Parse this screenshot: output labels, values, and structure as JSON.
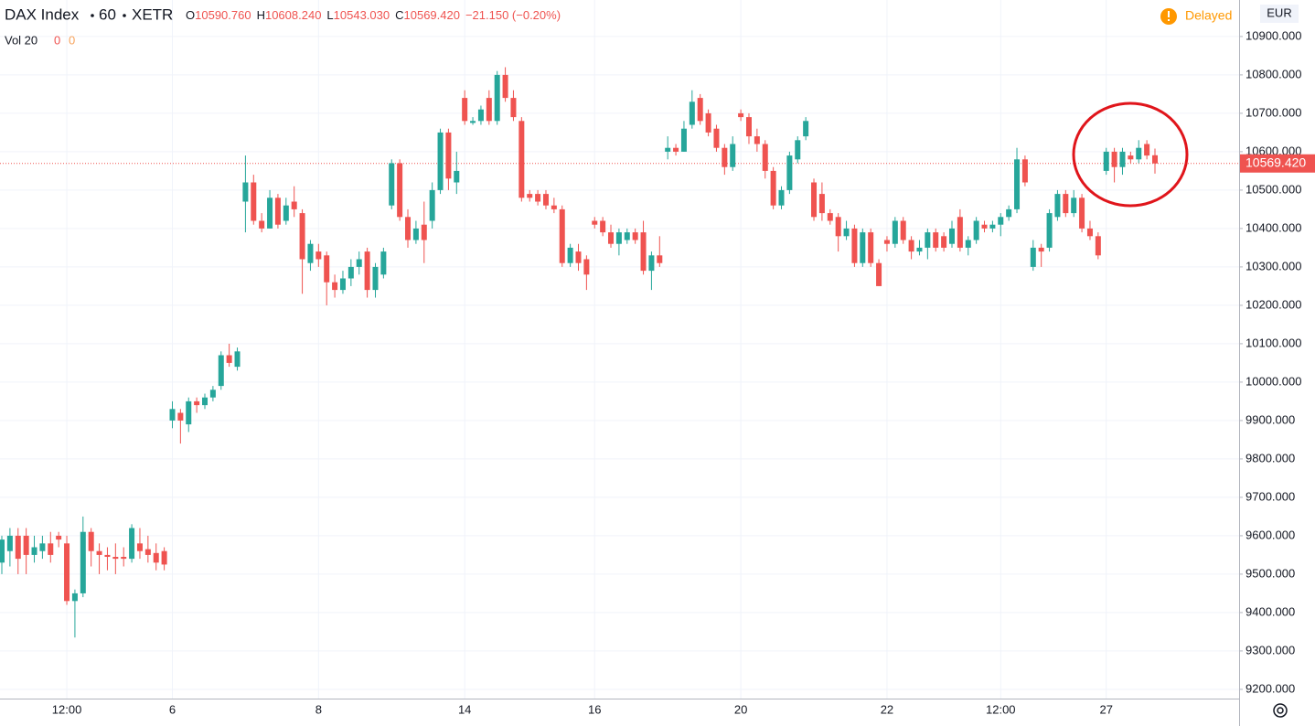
{
  "chart_data": {
    "type": "candlestick",
    "symbol": "DAX Index",
    "interval": "60",
    "exchange": "XETR",
    "header_ohlc": [
      {
        "label": "O",
        "value": "10590.760"
      },
      {
        "label": "H",
        "value": "10608.240"
      },
      {
        "label": "L",
        "value": "10543.030"
      },
      {
        "label": "C",
        "value": "10569.420"
      }
    ],
    "change": "−21.150 (−0.20%)",
    "volume_label": "Vol 20",
    "volume_values": [
      0,
      0
    ],
    "status": "Delayed",
    "currency": "EUR",
    "up_color": "#26a69a",
    "down_color": "#ef5350",
    "last_price": {
      "value": 10569.42,
      "label": "10569.420"
    },
    "grid": true,
    "x": [
      null,
      null,
      null,
      null,
      null,
      null,
      null,
      null,
      "12:00",
      null,
      null,
      null,
      null,
      null,
      null,
      null,
      null,
      null,
      null,
      null,
      null,
      "6",
      null,
      null,
      null,
      null,
      null,
      null,
      null,
      null,
      null,
      null,
      null,
      null,
      null,
      null,
      null,
      null,
      null,
      "8",
      null,
      null,
      null,
      null,
      null,
      null,
      null,
      null,
      null,
      null,
      null,
      null,
      null,
      null,
      null,
      null,
      null,
      "14",
      null,
      null,
      null,
      null,
      null,
      null,
      null,
      null,
      null,
      null,
      null,
      null,
      null,
      null,
      null,
      "16",
      null,
      null,
      null,
      null,
      null,
      null,
      null,
      null,
      null,
      null,
      null,
      null,
      null,
      null,
      null,
      null,
      null,
      "20",
      null,
      null,
      null,
      null,
      null,
      null,
      null,
      null,
      null,
      null,
      null,
      null,
      null,
      null,
      null,
      null,
      null,
      "22",
      null,
      null,
      null,
      null,
      null,
      null,
      null,
      null,
      null,
      null,
      null,
      null,
      null,
      "12:00",
      null,
      null,
      null,
      null,
      null,
      null,
      null,
      null,
      null,
      null,
      null,
      null,
      "27",
      null,
      null,
      null,
      null,
      null,
      null
    ],
    "open": [
      9530,
      9560,
      9600,
      9600,
      9550,
      9560,
      9580,
      9600,
      9580,
      9430,
      9450,
      9610,
      9560,
      9550,
      9545,
      9545,
      9540,
      9580,
      9565,
      9555,
      9560,
      9900,
      9920,
      9890,
      9950,
      9940,
      9960,
      9990,
      10070,
      10040,
      10470,
      10520,
      10420,
      10400,
      10480,
      10420,
      10470,
      10440,
      10310,
      10340,
      10330,
      10260,
      10240,
      10270,
      10300,
      10340,
      10240,
      10280,
      10460,
      10570,
      10430,
      10370,
      10410,
      10420,
      10500,
      10650,
      10520,
      10740,
      10675,
      10680,
      10740,
      10680,
      10800,
      10740,
      10680,
      10490,
      10490,
      10490,
      10460,
      10450,
      10310,
      10340,
      10320,
      10420,
      10420,
      10390,
      10360,
      10370,
      10390,
      10390,
      10290,
      10330,
      10600,
      10610,
      10600,
      10670,
      10740,
      10700,
      10660,
      10610,
      10560,
      10700,
      10690,
      10640,
      10620,
      10550,
      10460,
      10500,
      10580,
      10640,
      10520,
      10490,
      10440,
      10430,
      10380,
      10400,
      10310,
      10390,
      10310,
      10370,
      10360,
      10420,
      10370,
      10340,
      10350,
      10390,
      10380,
      10360,
      10430,
      10350,
      10370,
      10410,
      10400,
      10410,
      10430,
      10450,
      10580,
      10300,
      10350,
      10350,
      10430,
      10490,
      10440,
      10480,
      10400,
      10380,
      10550,
      10600,
      10560,
      10590,
      10580,
      10620,
      10590.76
    ],
    "high": [
      9600,
      9620,
      9620,
      9620,
      9600,
      9600,
      9610,
      9610,
      9600,
      9460,
      9650,
      9620,
      9580,
      9570,
      9580,
      9570,
      9630,
      9620,
      9600,
      9580,
      9570,
      9950,
      9930,
      9960,
      9960,
      9970,
      9990,
      10080,
      10100,
      10090,
      10590,
      10540,
      10440,
      10500,
      10490,
      10480,
      10510,
      10450,
      10370,
      10360,
      10340,
      10280,
      10290,
      10320,
      10340,
      10350,
      10310,
      10350,
      10580,
      10580,
      10450,
      10420,
      10470,
      10520,
      10660,
      10660,
      10600,
      10760,
      10690,
      10720,
      10760,
      10810,
      10820,
      10760,
      10690,
      10500,
      10500,
      10500,
      10480,
      10460,
      10360,
      10360,
      10330,
      10430,
      10430,
      10410,
      10400,
      10400,
      10400,
      10420,
      10340,
      10380,
      10640,
      10620,
      10680,
      10760,
      10750,
      10710,
      10670,
      10620,
      10640,
      10710,
      10700,
      10660,
      10630,
      10560,
      10510,
      10600,
      10640,
      10690,
      10530,
      10520,
      10450,
      10440,
      10420,
      10410,
      10400,
      10400,
      10320,
      10380,
      10430,
      10430,
      10380,
      10370,
      10400,
      10400,
      10390,
      10420,
      10450,
      10380,
      10430,
      10420,
      10420,
      10440,
      10460,
      10610,
      10590,
      10370,
      10360,
      10450,
      10500,
      10500,
      10500,
      10490,
      10420,
      10390,
      10610,
      10610,
      10610,
      10600,
      10630,
      10630,
      10608.24
    ],
    "low": [
      9500,
      9520,
      9500,
      9500,
      9530,
      9540,
      9530,
      9570,
      9420,
      9335,
      9440,
      9520,
      9500,
      9510,
      9500,
      9520,
      9530,
      9540,
      9530,
      9510,
      9510,
      9880,
      9840,
      9870,
      9920,
      9930,
      9950,
      9980,
      10040,
      10030,
      10390,
      10410,
      10390,
      10400,
      10400,
      10410,
      10430,
      10230,
      10290,
      10300,
      10200,
      10220,
      10230,
      10250,
      10280,
      10220,
      10220,
      10270,
      10450,
      10420,
      10350,
      10360,
      10310,
      10400,
      10490,
      10500,
      10490,
      10670,
      10670,
      10670,
      10670,
      10670,
      10730,
      10680,
      10470,
      10470,
      10460,
      10450,
      10440,
      10300,
      10300,
      10290,
      10240,
      10400,
      10380,
      10350,
      10330,
      10360,
      10360,
      10280,
      10240,
      10300,
      10580,
      10590,
      10600,
      10660,
      10670,
      10640,
      10600,
      10540,
      10550,
      10680,
      10620,
      10600,
      10530,
      10450,
      10450,
      10490,
      10570,
      10630,
      10420,
      10420,
      10410,
      10340,
      10370,
      10300,
      10300,
      10300,
      10250,
      10340,
      10350,
      10360,
      10320,
      10330,
      10320,
      10340,
      10340,
      10350,
      10340,
      10330,
      10360,
      10390,
      10390,
      10380,
      10420,
      10440,
      10510,
      10290,
      10300,
      10340,
      10420,
      10430,
      10430,
      10390,
      10370,
      10320,
      10540,
      10520,
      10540,
      10570,
      10570,
      10580,
      10543.03
    ],
    "close": [
      9590,
      9600,
      9540,
      9550,
      9570,
      9580,
      9550,
      9590,
      9430,
      9450,
      9610,
      9560,
      9550,
      9545,
      9540,
      9540,
      9620,
      9560,
      9550,
      9530,
      9525,
      9930,
      9900,
      9950,
      9940,
      9960,
      9980,
      10070,
      10050,
      10080,
      10520,
      10420,
      10400,
      10480,
      10410,
      10460,
      10450,
      10320,
      10360,
      10320,
      10260,
      10240,
      10270,
      10300,
      10320,
      10240,
      10300,
      10340,
      10570,
      10430,
      10370,
      10400,
      10370,
      10500,
      10650,
      10530,
      10550,
      10680,
      10680,
      10710,
      10680,
      10800,
      10740,
      10690,
      10480,
      10480,
      10470,
      10460,
      10450,
      10310,
      10350,
      10310,
      10280,
      10410,
      10390,
      10360,
      10390,
      10390,
      10370,
      10290,
      10330,
      10310,
      10610,
      10600,
      10660,
      10730,
      10680,
      10650,
      10610,
      10560,
      10620,
      10690,
      10640,
      10620,
      10550,
      10460,
      10500,
      10590,
      10630,
      10680,
      10430,
      10440,
      10420,
      10380,
      10400,
      10310,
      10390,
      10310,
      10250,
      10360,
      10420,
      10370,
      10340,
      10350,
      10390,
      10350,
      10350,
      10400,
      10350,
      10370,
      10420,
      10400,
      10410,
      10430,
      10450,
      10580,
      10520,
      10350,
      10340,
      10440,
      10490,
      10440,
      10480,
      10400,
      10380,
      10330,
      10600,
      10560,
      10600,
      10580,
      10610,
      10590,
      10569.42
    ],
    "ylim": [
      9176,
      10995
    ],
    "yticks": [
      {
        "value": 9200,
        "label": "9200.000"
      },
      {
        "value": 9300,
        "label": "9300.000"
      },
      {
        "value": 9400,
        "label": "9400.000"
      },
      {
        "value": 9500,
        "label": "9500.000"
      },
      {
        "value": 9600,
        "label": "9600.000"
      },
      {
        "value": 9700,
        "label": "9700.000"
      },
      {
        "value": 9800,
        "label": "9800.000"
      },
      {
        "value": 9900,
        "label": "9900.000"
      },
      {
        "value": 10000,
        "label": "10000.000"
      },
      {
        "value": 10100,
        "label": "10100.000"
      },
      {
        "value": 10200,
        "label": "10200.000"
      },
      {
        "value": 10300,
        "label": "10300.000"
      },
      {
        "value": 10400,
        "label": "10400.000"
      },
      {
        "value": 10500,
        "label": "10500.000"
      },
      {
        "value": 10600,
        "label": "10600.000"
      },
      {
        "value": 10700,
        "label": "10700.000"
      },
      {
        "value": 10800,
        "label": "10800.000"
      },
      {
        "value": 10900,
        "label": "10900.000"
      }
    ]
  }
}
